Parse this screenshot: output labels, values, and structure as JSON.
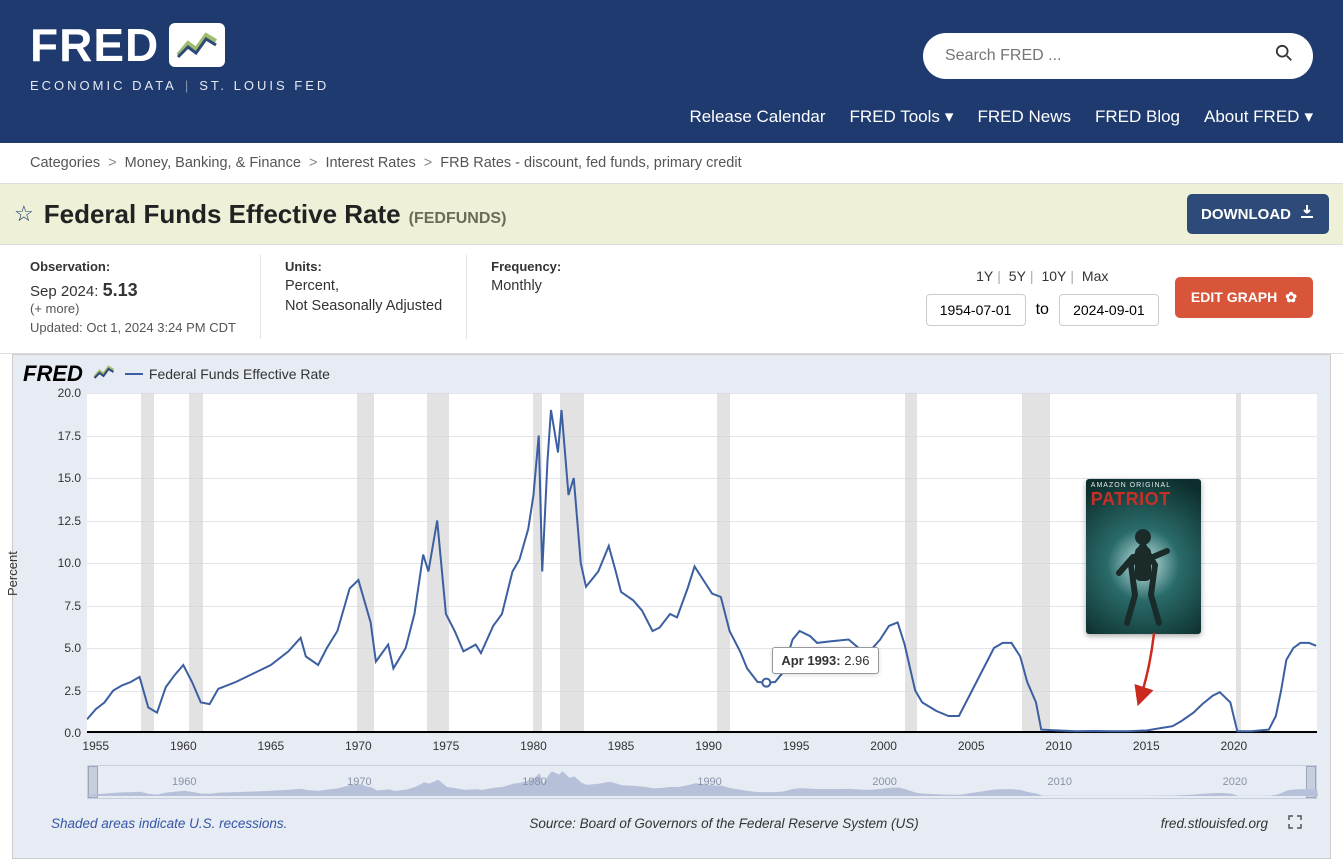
{
  "brand": {
    "name": "FRED",
    "subtitle_left": "ECONOMIC DATA",
    "subtitle_right": "ST. LOUIS FED"
  },
  "search": {
    "placeholder": "Search FRED ..."
  },
  "nav": {
    "release_calendar": "Release Calendar",
    "tools": "FRED Tools",
    "news": "FRED News",
    "blog": "FRED Blog",
    "about": "About FRED"
  },
  "breadcrumbs": {
    "b0": "Categories",
    "b1": "Money, Banking, & Finance",
    "b2": "Interest Rates",
    "b3": "FRB Rates - discount, fed funds, primary credit"
  },
  "title": {
    "name": "Federal Funds Effective Rate",
    "series_id": "(FEDFUNDS)"
  },
  "buttons": {
    "download": "DOWNLOAD",
    "edit_graph": "EDIT GRAPH"
  },
  "meta": {
    "observation_label": "Observation:",
    "observation_date": "Sep 2024:",
    "observation_value": "5.13",
    "more": "(+ more)",
    "updated_label": "Updated:",
    "updated_value": "Oct 1, 2024 3:24 PM CDT",
    "units_label": "Units:",
    "units_line1": "Percent,",
    "units_line2": "Not Seasonally Adjusted",
    "frequency_label": "Frequency:",
    "frequency_value": "Monthly"
  },
  "ranges": {
    "r1y": "1Y",
    "r5y": "5Y",
    "r10y": "10Y",
    "rmax": "Max",
    "from": "1954-07-01",
    "to_label": "to",
    "to": "2024-09-01"
  },
  "chart": {
    "type": "line",
    "legend": "Federal Funds Effective Rate",
    "y_label": "Percent",
    "line_color": "#3b5fa0",
    "line_width": 2,
    "background_color": "#ffffff",
    "panel_color": "#e7ebf3",
    "grid_color": "#e2e5ec",
    "recession_color": "#d6d6d6",
    "x_domain": [
      1954.5,
      2024.75
    ],
    "y_domain": [
      0,
      20
    ],
    "y_ticks": [
      0.0,
      2.5,
      5.0,
      7.5,
      10.0,
      12.5,
      15.0,
      17.5,
      20.0
    ],
    "x_ticks": [
      1955,
      1960,
      1965,
      1970,
      1975,
      1980,
      1985,
      1990,
      1995,
      2000,
      2005,
      2010,
      2015,
      2020
    ],
    "recessions": [
      [
        1957.6,
        1958.3
      ],
      [
        1960.3,
        1961.1
      ],
      [
        1969.9,
        1970.9
      ],
      [
        1973.9,
        1975.2
      ],
      [
        1980.0,
        1980.5
      ],
      [
        1981.5,
        1982.9
      ],
      [
        1990.5,
        1991.2
      ],
      [
        2001.2,
        2001.9
      ],
      [
        2007.9,
        2009.5
      ],
      [
        2020.1,
        2020.4
      ]
    ],
    "series": [
      [
        1954.5,
        0.8
      ],
      [
        1955.0,
        1.4
      ],
      [
        1955.5,
        1.8
      ],
      [
        1956.0,
        2.5
      ],
      [
        1956.5,
        2.8
      ],
      [
        1957.0,
        3.0
      ],
      [
        1957.5,
        3.3
      ],
      [
        1958.0,
        1.5
      ],
      [
        1958.5,
        1.2
      ],
      [
        1959.0,
        2.7
      ],
      [
        1959.5,
        3.4
      ],
      [
        1960.0,
        4.0
      ],
      [
        1960.5,
        3.0
      ],
      [
        1961.0,
        1.8
      ],
      [
        1961.5,
        1.7
      ],
      [
        1962.0,
        2.6
      ],
      [
        1963.0,
        3.0
      ],
      [
        1964.0,
        3.5
      ],
      [
        1965.0,
        4.0
      ],
      [
        1966.0,
        4.8
      ],
      [
        1966.7,
        5.6
      ],
      [
        1967.0,
        4.5
      ],
      [
        1967.7,
        4.0
      ],
      [
        1968.2,
        5.0
      ],
      [
        1968.8,
        6.0
      ],
      [
        1969.5,
        8.5
      ],
      [
        1970.0,
        9.0
      ],
      [
        1970.7,
        6.5
      ],
      [
        1971.0,
        4.2
      ],
      [
        1971.7,
        5.2
      ],
      [
        1972.0,
        3.8
      ],
      [
        1972.7,
        5.0
      ],
      [
        1973.2,
        7.0
      ],
      [
        1973.7,
        10.5
      ],
      [
        1974.0,
        9.5
      ],
      [
        1974.5,
        12.5
      ],
      [
        1975.0,
        7.0
      ],
      [
        1975.5,
        6.0
      ],
      [
        1976.0,
        4.8
      ],
      [
        1976.7,
        5.2
      ],
      [
        1977.0,
        4.7
      ],
      [
        1977.7,
        6.3
      ],
      [
        1978.2,
        7.0
      ],
      [
        1978.8,
        9.5
      ],
      [
        1979.2,
        10.2
      ],
      [
        1979.7,
        12.0
      ],
      [
        1980.0,
        14.0
      ],
      [
        1980.3,
        17.5
      ],
      [
        1980.5,
        9.5
      ],
      [
        1980.8,
        16.0
      ],
      [
        1981.0,
        19.0
      ],
      [
        1981.4,
        16.5
      ],
      [
        1981.6,
        19.0
      ],
      [
        1982.0,
        14.0
      ],
      [
        1982.3,
        15.0
      ],
      [
        1982.7,
        10.0
      ],
      [
        1983.0,
        8.6
      ],
      [
        1983.7,
        9.5
      ],
      [
        1984.3,
        11.0
      ],
      [
        1984.7,
        9.5
      ],
      [
        1985.0,
        8.3
      ],
      [
        1985.7,
        7.8
      ],
      [
        1986.2,
        7.2
      ],
      [
        1986.8,
        6.0
      ],
      [
        1987.2,
        6.2
      ],
      [
        1987.8,
        7.0
      ],
      [
        1988.2,
        6.8
      ],
      [
        1988.8,
        8.5
      ],
      [
        1989.2,
        9.8
      ],
      [
        1989.7,
        9.0
      ],
      [
        1990.2,
        8.2
      ],
      [
        1990.7,
        8.0
      ],
      [
        1991.2,
        6.0
      ],
      [
        1991.8,
        4.8
      ],
      [
        1992.2,
        3.8
      ],
      [
        1992.8,
        3.0
      ],
      [
        1993.3,
        2.96
      ],
      [
        1993.8,
        3.0
      ],
      [
        1994.2,
        3.5
      ],
      [
        1994.8,
        5.5
      ],
      [
        1995.2,
        6.0
      ],
      [
        1995.8,
        5.7
      ],
      [
        1996.2,
        5.3
      ],
      [
        1997.0,
        5.4
      ],
      [
        1998.0,
        5.5
      ],
      [
        1998.8,
        4.8
      ],
      [
        1999.2,
        4.8
      ],
      [
        1999.8,
        5.5
      ],
      [
        2000.3,
        6.3
      ],
      [
        2000.8,
        6.5
      ],
      [
        2001.2,
        5.2
      ],
      [
        2001.8,
        2.5
      ],
      [
        2002.2,
        1.8
      ],
      [
        2003.0,
        1.3
      ],
      [
        2003.7,
        1.0
      ],
      [
        2004.3,
        1.0
      ],
      [
        2004.8,
        2.0
      ],
      [
        2005.3,
        3.0
      ],
      [
        2005.8,
        4.0
      ],
      [
        2006.3,
        5.0
      ],
      [
        2006.8,
        5.3
      ],
      [
        2007.3,
        5.3
      ],
      [
        2007.8,
        4.5
      ],
      [
        2008.2,
        3.0
      ],
      [
        2008.7,
        1.8
      ],
      [
        2009.0,
        0.2
      ],
      [
        2010.0,
        0.15
      ],
      [
        2011.0,
        0.1
      ],
      [
        2012.0,
        0.12
      ],
      [
        2013.0,
        0.1
      ],
      [
        2014.0,
        0.1
      ],
      [
        2015.0,
        0.15
      ],
      [
        2015.9,
        0.3
      ],
      [
        2016.5,
        0.4
      ],
      [
        2017.0,
        0.7
      ],
      [
        2017.7,
        1.2
      ],
      [
        2018.2,
        1.7
      ],
      [
        2018.8,
        2.2
      ],
      [
        2019.2,
        2.4
      ],
      [
        2019.8,
        1.8
      ],
      [
        2020.2,
        0.1
      ],
      [
        2021.0,
        0.1
      ],
      [
        2022.0,
        0.2
      ],
      [
        2022.4,
        1.0
      ],
      [
        2022.7,
        2.5
      ],
      [
        2023.0,
        4.3
      ],
      [
        2023.4,
        5.0
      ],
      [
        2023.8,
        5.3
      ],
      [
        2024.3,
        5.3
      ],
      [
        2024.7,
        5.13
      ]
    ],
    "tooltip": {
      "label": "Apr 1993:",
      "value": "2.96",
      "at_x": 1993.3,
      "at_y": 2.96
    }
  },
  "overview": {
    "ticks": [
      1960,
      1970,
      1980,
      1990,
      2000,
      2010,
      2020
    ]
  },
  "overlay": {
    "tag": "AMAZON ORIGINAL",
    "title": "PATRIOT",
    "title_color": "#c63026",
    "arrow_color": "#cc2a1f"
  },
  "chart_footer": {
    "note": "Shaded areas indicate U.S. recessions.",
    "source": "Source: Board of Governors of the Federal Reserve System (US)",
    "url": "fred.stlouisfed.org"
  }
}
